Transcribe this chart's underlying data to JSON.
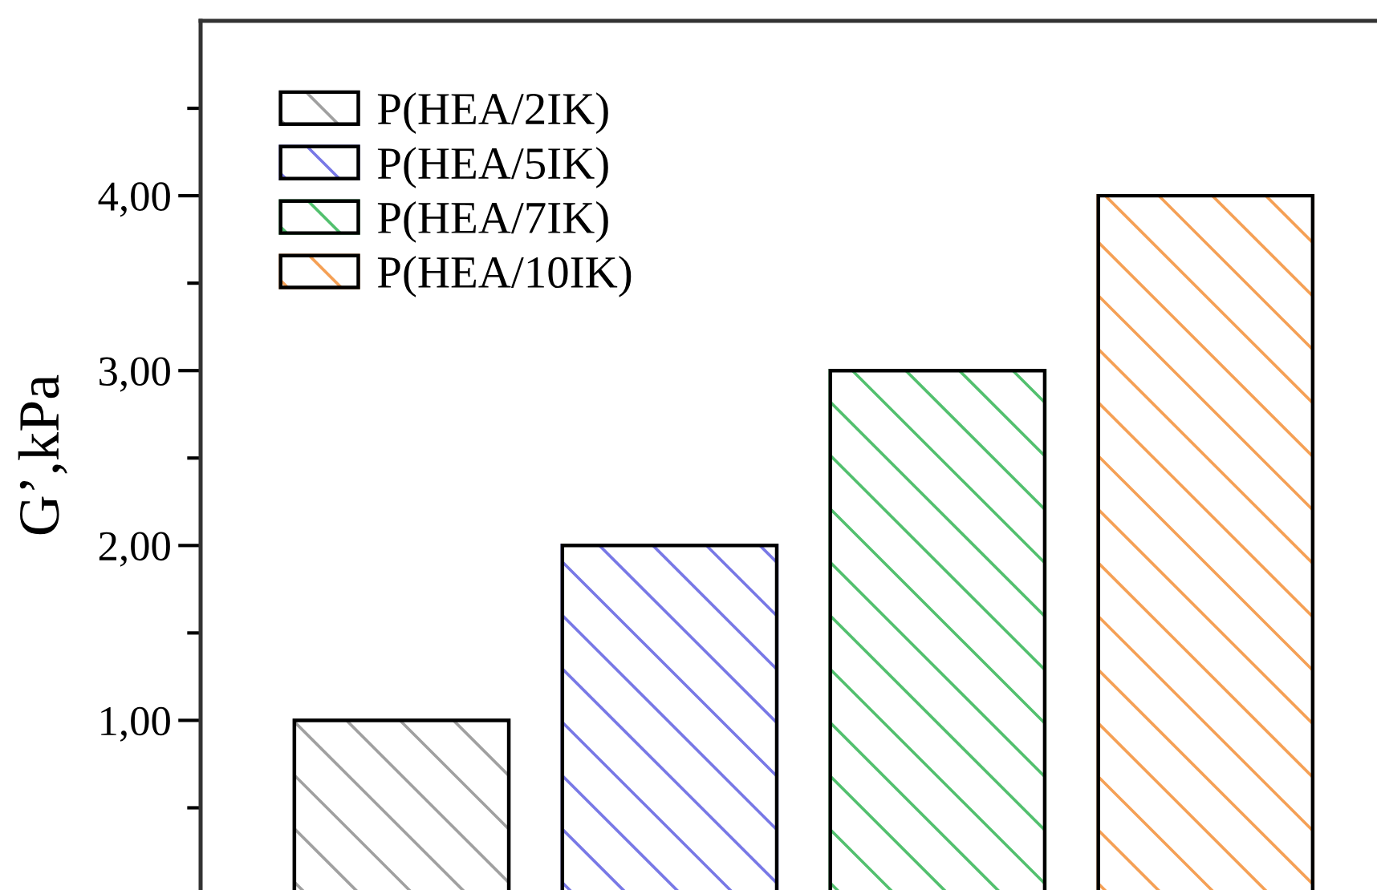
{
  "chart_data": {
    "type": "bar",
    "ylabel": "G’,kPa",
    "categories": [
      null,
      null,
      null,
      null
    ],
    "series": [
      {
        "name": "P(HEA/2IK)",
        "color": "#a0a0a0",
        "values": [
          1,
          null,
          null,
          null
        ]
      },
      {
        "name": "P(HEA/5IK)",
        "color": "#7878e6",
        "values": [
          null,
          2,
          null,
          null
        ]
      },
      {
        "name": "P(HEA/7IK)",
        "color": "#52c06e",
        "values": [
          null,
          null,
          3,
          null
        ]
      },
      {
        "name": "P(HEA/10IK)",
        "color": "#f5a055",
        "values": [
          null,
          null,
          null,
          4
        ]
      }
    ],
    "ylim": [
      0.03,
      5
    ],
    "yticks": [
      {
        "value": 0.5,
        "label": null
      },
      {
        "value": 1,
        "label": "1,00"
      },
      {
        "value": 1.5,
        "label": null
      },
      {
        "value": 2,
        "label": "2,00"
      },
      {
        "value": 2.5,
        "label": null
      },
      {
        "value": 3,
        "label": "3,00"
      },
      {
        "value": 3.5,
        "label": null
      },
      {
        "value": 4,
        "label": "4,00"
      },
      {
        "value": 4.5,
        "label": null
      }
    ],
    "legend": "top left",
    "tick_labels": "y"
  }
}
